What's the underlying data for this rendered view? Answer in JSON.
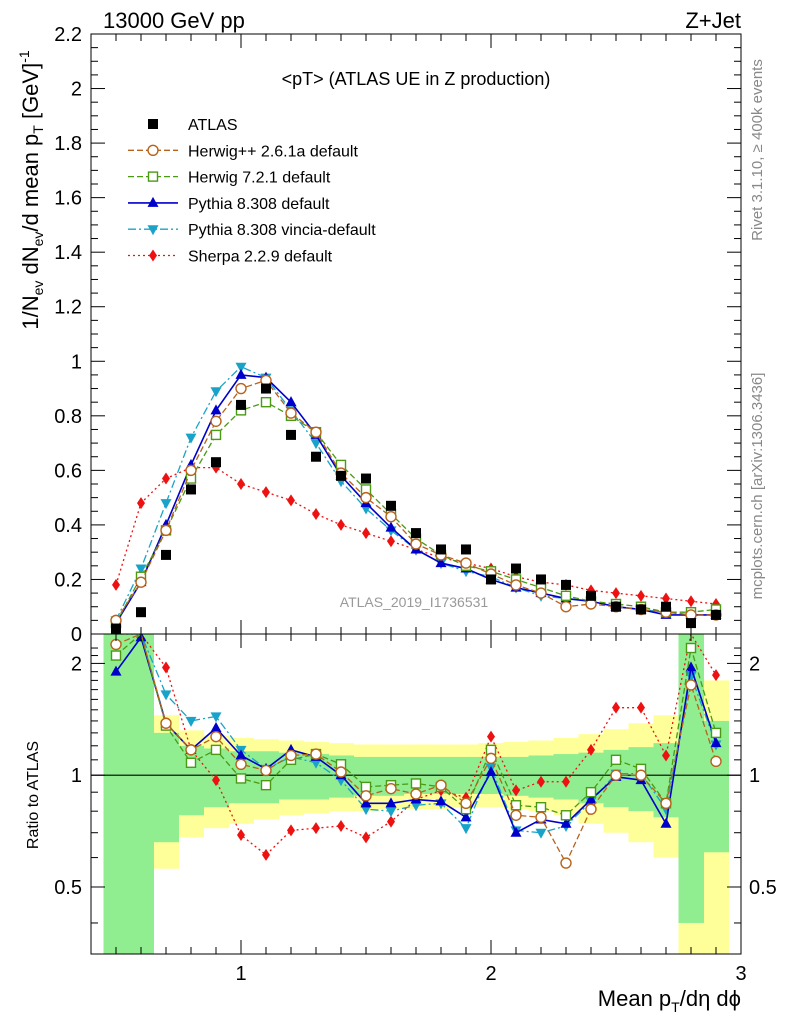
{
  "header": {
    "left": "13000 GeV pp",
    "right": "Z+Jet"
  },
  "plot": {
    "title": "<pT> (ATLAS UE in Z production)",
    "analysis_id": "ATLAS_2019_I1736531",
    "side_label_top": "Rivet 3.1.10, ≥ 400k events",
    "side_label_bottom": "mcplots.cern.ch [arXiv:1306.3436]",
    "ylabel_main": "1/N_ev dN_ev/d mean p_T [GeV]^-1",
    "ylabel_ratio": "Ratio to ATLAS",
    "xlabel": "Mean p_T/dη dϕ"
  },
  "chart_data": [
    {
      "type": "scatter",
      "panel": "main",
      "xlim": [
        0.4,
        3.0
      ],
      "ylim": [
        0,
        2.2
      ],
      "yticks": [
        0,
        0.2,
        0.4,
        0.6,
        0.8,
        1,
        1.2,
        1.4,
        1.6,
        1.8,
        2,
        2.2
      ],
      "ytick_labels": [
        "0",
        "0.2",
        "0.4",
        "0.6",
        "0.8",
        "1",
        "1.2",
        "1.4",
        "1.6",
        "1.8",
        "2",
        "2.2"
      ],
      "xticks": [
        1,
        2,
        3
      ],
      "xtick_labels": [
        "1",
        "2",
        "3"
      ],
      "x": [
        0.5,
        0.6,
        0.7,
        0.8,
        0.9,
        1.0,
        1.1,
        1.2,
        1.3,
        1.4,
        1.5,
        1.6,
        1.7,
        1.8,
        1.9,
        2.0,
        2.1,
        2.2,
        2.3,
        2.4,
        2.5,
        2.6,
        2.7,
        2.8,
        2.9
      ],
      "legend_placement": "top-left",
      "series": [
        {
          "name": "ATLAS",
          "marker": "square",
          "color": "#000000",
          "line": "none",
          "values": [
            0.02,
            0.08,
            0.29,
            0.53,
            0.63,
            0.84,
            0.9,
            0.73,
            0.65,
            0.58,
            0.57,
            0.47,
            0.37,
            0.31,
            0.31,
            0.2,
            0.24,
            0.2,
            0.18,
            0.14,
            0.1,
            0.09,
            0.1,
            0.04,
            0.07
          ]
        },
        {
          "name": "Herwig++ 2.6.1a default",
          "marker": "open-circle",
          "color": "#b8621b",
          "line": "dashed",
          "values": [
            0.05,
            0.19,
            0.38,
            0.6,
            0.78,
            0.9,
            0.93,
            0.81,
            0.74,
            0.59,
            0.5,
            0.43,
            0.33,
            0.29,
            0.26,
            0.22,
            0.18,
            0.15,
            0.1,
            0.11,
            0.1,
            0.09,
            0.08,
            0.07,
            0.07
          ]
        },
        {
          "name": "Herwig 7.2.1 default",
          "marker": "open-square",
          "color": "#4a9a14",
          "line": "dashed",
          "values": [
            0.04,
            0.21,
            0.38,
            0.57,
            0.73,
            0.82,
            0.85,
            0.8,
            0.74,
            0.62,
            0.53,
            0.44,
            0.35,
            0.29,
            0.25,
            0.23,
            0.2,
            0.17,
            0.14,
            0.12,
            0.11,
            0.1,
            0.08,
            0.08,
            0.09
          ]
        },
        {
          "name": "Pythia 8.308 default",
          "marker": "triangle-up",
          "color": "#0000cc",
          "line": "solid",
          "values": [
            0.04,
            0.19,
            0.4,
            0.62,
            0.82,
            0.95,
            0.94,
            0.85,
            0.73,
            0.58,
            0.48,
            0.39,
            0.31,
            0.26,
            0.24,
            0.2,
            0.17,
            0.15,
            0.13,
            0.12,
            0.1,
            0.09,
            0.07,
            0.07,
            0.07
          ]
        },
        {
          "name": "Pythia 8.308 vincia-default",
          "marker": "triangle-down",
          "color": "#1aa3c9",
          "line": "dashdot",
          "values": [
            0.05,
            0.24,
            0.48,
            0.72,
            0.89,
            0.98,
            0.94,
            0.82,
            0.7,
            0.56,
            0.46,
            0.38,
            0.31,
            0.26,
            0.23,
            0.21,
            0.17,
            0.14,
            0.13,
            0.12,
            0.1,
            0.09,
            0.08,
            0.07,
            0.07
          ]
        },
        {
          "name": "Sherpa 2.2.9 default",
          "marker": "diamond",
          "color": "#ee1111",
          "line": "dotted",
          "values": [
            0.18,
            0.48,
            0.57,
            0.61,
            0.61,
            0.55,
            0.52,
            0.49,
            0.44,
            0.4,
            0.37,
            0.34,
            0.31,
            0.28,
            0.26,
            0.24,
            0.21,
            0.19,
            0.18,
            0.16,
            0.15,
            0.14,
            0.13,
            0.12,
            0.11
          ]
        }
      ]
    },
    {
      "type": "line",
      "panel": "ratio",
      "xlim": [
        0.4,
        3.0
      ],
      "ylim": [
        0.33,
        2.4
      ],
      "scale": "log",
      "yticks": [
        0.5,
        1,
        2
      ],
      "ytick_labels": [
        "0.5",
        "1",
        "2"
      ],
      "reference_line": 1,
      "x": [
        0.5,
        0.6,
        0.7,
        0.8,
        0.9,
        1.0,
        1.1,
        1.2,
        1.3,
        1.4,
        1.5,
        1.6,
        1.7,
        1.8,
        1.9,
        2.0,
        2.1,
        2.2,
        2.3,
        2.4,
        2.5,
        2.6,
        2.7,
        2.8,
        2.9
      ],
      "uncertainty_bands": {
        "green": {
          "color": "#90ee90",
          "low": [
            0.33,
            0.33,
            0.66,
            0.78,
            0.82,
            0.84,
            0.84,
            0.86,
            0.86,
            0.87,
            0.88,
            0.88,
            0.89,
            0.89,
            0.89,
            0.89,
            0.88,
            0.87,
            0.86,
            0.84,
            0.82,
            0.8,
            0.77,
            0.4,
            0.62
          ],
          "high": [
            2.4,
            2.4,
            1.3,
            1.2,
            1.18,
            1.16,
            1.16,
            1.15,
            1.14,
            1.13,
            1.12,
            1.12,
            1.12,
            1.12,
            1.12,
            1.12,
            1.12,
            1.13,
            1.14,
            1.15,
            1.17,
            1.19,
            1.22,
            2.4,
            1.4
          ]
        },
        "yellow": {
          "color": "#ffff99",
          "low": [
            0.33,
            0.33,
            0.56,
            0.68,
            0.72,
            0.74,
            0.76,
            0.78,
            0.79,
            0.8,
            0.8,
            0.81,
            0.81,
            0.81,
            0.82,
            0.82,
            0.81,
            0.8,
            0.78,
            0.74,
            0.7,
            0.66,
            0.6,
            0.33,
            0.33
          ],
          "high": [
            2.4,
            2.4,
            1.45,
            1.32,
            1.28,
            1.26,
            1.25,
            1.24,
            1.23,
            1.22,
            1.21,
            1.21,
            1.21,
            1.21,
            1.21,
            1.22,
            1.23,
            1.24,
            1.26,
            1.29,
            1.33,
            1.38,
            1.45,
            2.4,
            1.8
          ]
        }
      },
      "series": [
        {
          "name": "Herwig++ 2.6.1a default",
          "color": "#b8621b",
          "values": [
            2.25,
            2.5,
            1.38,
            1.17,
            1.27,
            1.07,
            1.03,
            1.13,
            1.14,
            1.02,
            0.88,
            0.92,
            0.89,
            0.94,
            0.84,
            1.11,
            0.78,
            0.77,
            0.58,
            0.81,
            1.0,
            1.0,
            0.84,
            1.75,
            1.09
          ]
        },
        {
          "name": "Herwig 7.2.1 default",
          "color": "#4a9a14",
          "values": [
            2.1,
            2.5,
            1.36,
            1.08,
            1.17,
            0.98,
            0.94,
            1.1,
            1.14,
            1.07,
            0.93,
            0.94,
            0.95,
            0.93,
            0.81,
            1.17,
            0.83,
            0.82,
            0.78,
            0.9,
            1.1,
            1.04,
            0.84,
            2.2,
            1.3
          ]
        },
        {
          "name": "Pythia 8.308 default",
          "color": "#0000cc",
          "values": [
            1.9,
            2.35,
            1.38,
            1.17,
            1.34,
            1.13,
            1.04,
            1.17,
            1.12,
            1.0,
            0.84,
            0.84,
            0.86,
            0.85,
            0.77,
            1.02,
            0.7,
            0.76,
            0.74,
            0.86,
            0.99,
            0.97,
            0.74,
            1.95,
            1.22
          ]
        },
        {
          "name": "Pythia 8.308 vincia-default",
          "color": "#1aa3c9",
          "values": [
            2.4,
            2.4,
            1.65,
            1.4,
            1.44,
            1.17,
            1.04,
            1.12,
            1.08,
            0.97,
            0.81,
            0.8,
            0.83,
            0.84,
            0.72,
            1.05,
            0.71,
            0.7,
            0.73,
            0.85,
            1.01,
            1.01,
            0.81,
            1.85,
            1.21
          ]
        },
        {
          "name": "Sherpa 2.2.9 default",
          "color": "#ee1111",
          "values": [
            2.4,
            2.4,
            1.95,
            1.17,
            0.97,
            0.69,
            0.61,
            0.71,
            0.72,
            0.73,
            0.68,
            0.75,
            0.86,
            0.91,
            0.87,
            1.27,
            0.91,
            0.96,
            0.96,
            1.17,
            1.52,
            1.52,
            1.13,
            2.4,
            1.86
          ]
        }
      ]
    }
  ]
}
